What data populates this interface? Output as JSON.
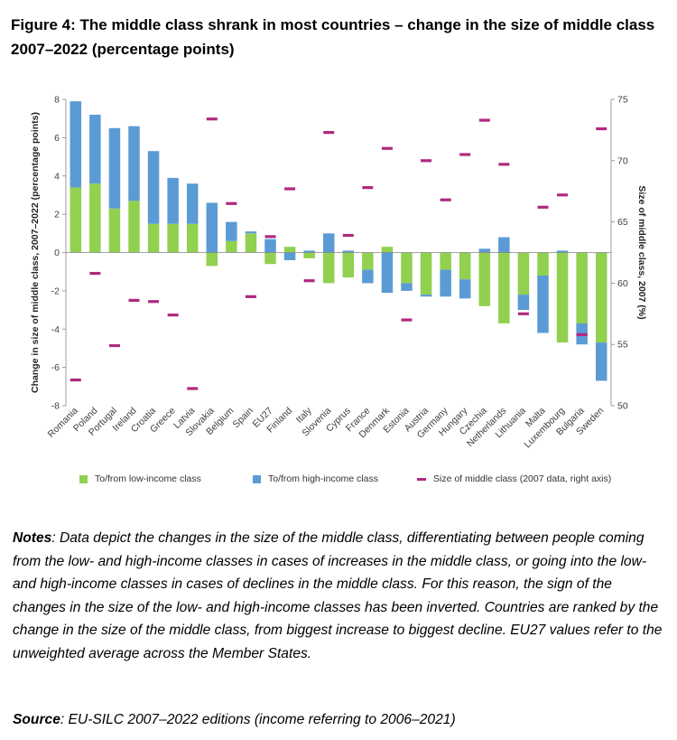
{
  "title": "Figure 4: The middle class shrank in most countries – change in the size of middle class 2007–2022 (percentage points)",
  "colors": {
    "low": "#92d050",
    "high": "#5b9bd5",
    "mid": "#b0287f",
    "axis": "#868686"
  },
  "chart_data": {
    "type": "bar",
    "stacked": true,
    "categories": [
      "Romania",
      "Poland",
      "Portugal",
      "Ireland",
      "Croatia",
      "Greece",
      "Latvia",
      "Slovakia",
      "Belgium",
      "Spain",
      "EU27",
      "Finland",
      "Italy",
      "Slovenia",
      "Cyprus",
      "France",
      "Denmark",
      "Estonia",
      "Austria",
      "Germany",
      "Hungary",
      "Czechia",
      "Netherlands",
      "Lithuania",
      "Malta",
      "Luxembourg",
      "Bulgaria",
      "Sweden"
    ],
    "series": [
      {
        "name": "To/from low-income class",
        "axis": "left",
        "values": [
          3.4,
          3.6,
          2.3,
          2.7,
          1.5,
          1.5,
          1.5,
          -0.7,
          0.6,
          1.0,
          -0.6,
          0.3,
          -0.3,
          -1.6,
          -1.3,
          -0.9,
          0.3,
          -1.6,
          -2.2,
          -0.9,
          -1.4,
          -2.8,
          -3.7,
          -2.2,
          -1.2,
          -4.7,
          -3.7,
          -4.7
        ]
      },
      {
        "name": "To/from high-income class",
        "axis": "left",
        "values": [
          4.5,
          3.6,
          4.2,
          3.9,
          3.8,
          2.4,
          2.1,
          2.6,
          1.0,
          0.1,
          0.7,
          -0.4,
          0.1,
          1.0,
          0.1,
          -0.7,
          -2.1,
          -0.4,
          -0.1,
          -1.4,
          -1.0,
          0.2,
          0.8,
          -0.8,
          -3.0,
          0.1,
          -1.1,
          -2.0
        ]
      },
      {
        "name": "Size of middle class (2007 data, right axis)",
        "axis": "right",
        "values": [
          52.1,
          60.8,
          54.9,
          58.6,
          58.5,
          57.4,
          51.4,
          73.4,
          66.5,
          58.9,
          63.8,
          67.7,
          60.2,
          72.3,
          63.9,
          67.8,
          71.0,
          57.0,
          70.0,
          66.8,
          70.5,
          73.3,
          69.7,
          57.5,
          66.2,
          67.2,
          55.8,
          72.6
        ]
      }
    ],
    "ylabel": "Change in size of middle class, 2007–2022 (percentage points)",
    "y2label": "Size of middle class, 2007 (%)",
    "ylim": [
      -8,
      8
    ],
    "y2lim": [
      50,
      75
    ],
    "yticks": [
      "-8",
      "-6",
      "-4",
      "-2",
      "0",
      "2",
      "4",
      "6",
      "8"
    ],
    "y2ticks": [
      "50",
      "55",
      "60",
      "65",
      "70",
      "75"
    ],
    "grid": false,
    "legend_position": "bottom"
  },
  "legend": {
    "low": "To/from low-income class",
    "high": "To/from high-income class",
    "mid": "Size of middle class (2007 data, right axis)"
  },
  "notes": {
    "label": "Notes",
    "text": ": Data depict the changes in the size of the middle class, differentiating between people coming from the low- and high-income classes in cases of increases in the middle class, or going into the low- and high-income classes in cases of declines in the middle class. For this reason, the sign of the changes in the size of the low- and high-income classes has been inverted. Countries are ranked by the change in the size of the middle class, from biggest increase to biggest decline. EU27 values refer to the unweighted average across the Member States."
  },
  "source": {
    "label": "Source",
    "text": ": EU-SILC 2007–2022 editions (income referring to 2006–2021)"
  }
}
